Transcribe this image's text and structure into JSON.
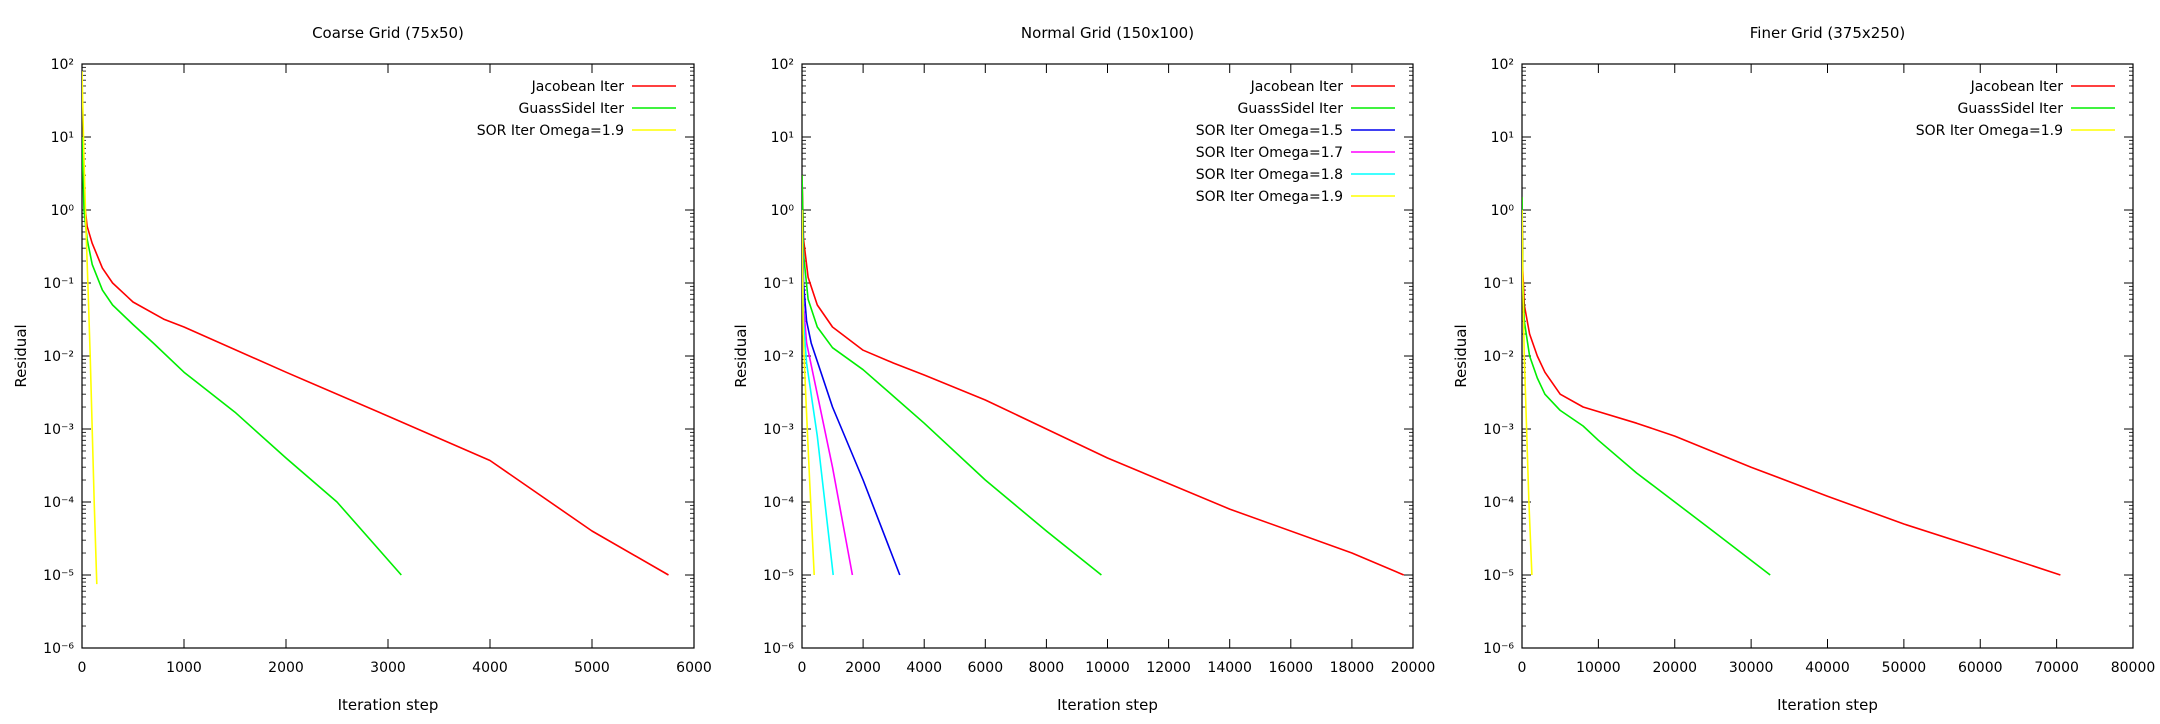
{
  "chart_data": [
    {
      "type": "line",
      "title": "Coarse Grid (75x50)",
      "xlabel": "Iteration step",
      "ylabel": "Residual",
      "xlim": [
        0,
        6000
      ],
      "ylim_exp": [
        -6,
        2
      ],
      "yscale": "log",
      "legend_position": "top-right",
      "xticks": [
        "0",
        "1000",
        "2000",
        "3000",
        "4000",
        "5000",
        "6000"
      ],
      "series": [
        {
          "name": "Jacobean Iter",
          "color": "#ff0000",
          "points": [
            [
              0,
              10
            ],
            [
              20,
              1.5
            ],
            [
              50,
              0.6
            ],
            [
              100,
              0.35
            ],
            [
              200,
              0.16
            ],
            [
              300,
              0.1
            ],
            [
              500,
              0.055
            ],
            [
              800,
              0.032
            ],
            [
              1000,
              0.025
            ],
            [
              2000,
              0.006
            ],
            [
              3000,
              0.0015
            ],
            [
              4000,
              0.00037
            ],
            [
              5000,
              4e-05
            ],
            [
              5750,
              1e-05
            ]
          ]
        },
        {
          "name": "GuassSidel Iter",
          "color": "#00ee00",
          "points": [
            [
              0,
              10
            ],
            [
              20,
              1.0
            ],
            [
              50,
              0.4
            ],
            [
              100,
              0.18
            ],
            [
              200,
              0.08
            ],
            [
              300,
              0.05
            ],
            [
              500,
              0.027
            ],
            [
              700,
              0.015
            ],
            [
              1000,
              0.006
            ],
            [
              1500,
              0.0017
            ],
            [
              2000,
              0.0004
            ],
            [
              2500,
              0.0001
            ],
            [
              3130,
              1e-05
            ]
          ]
        },
        {
          "name": "SOR Iter Omega=1.9",
          "color": "#ffff00",
          "points": [
            [
              0,
              80
            ],
            [
              20,
              5
            ],
            [
              40,
              0.5
            ],
            [
              60,
              0.08
            ],
            [
              80,
              0.01
            ],
            [
              100,
              0.001
            ],
            [
              120,
              0.0001
            ],
            [
              145,
              7.5e-06
            ]
          ]
        }
      ]
    },
    {
      "type": "line",
      "title": "Normal Grid (150x100)",
      "xlabel": "Iteration step",
      "ylabel": "Residual",
      "xlim": [
        0,
        20000
      ],
      "ylim_exp": [
        -6,
        2
      ],
      "yscale": "log",
      "legend_position": "top-right",
      "xticks": [
        "0",
        "2000",
        "4000",
        "6000",
        "8000",
        "10000",
        "12000",
        "14000",
        "16000",
        "18000",
        "20000"
      ],
      "series": [
        {
          "name": "Jacobean Iter",
          "color": "#ff0000",
          "points": [
            [
              0,
              3
            ],
            [
              50,
              0.4
            ],
            [
              200,
              0.12
            ],
            [
              500,
              0.05
            ],
            [
              1000,
              0.025
            ],
            [
              2000,
              0.012
            ],
            [
              3000,
              0.008
            ],
            [
              4000,
              0.0055
            ],
            [
              6000,
              0.0025
            ],
            [
              8000,
              0.001
            ],
            [
              10000,
              0.0004
            ],
            [
              14000,
              8e-05
            ],
            [
              18000,
              2e-05
            ],
            [
              19700,
              1e-05
            ]
          ]
        },
        {
          "name": "GuassSidel Iter",
          "color": "#00ee00",
          "points": [
            [
              0,
              3
            ],
            [
              50,
              0.25
            ],
            [
              200,
              0.06
            ],
            [
              500,
              0.025
            ],
            [
              1000,
              0.013
            ],
            [
              2000,
              0.0065
            ],
            [
              3000,
              0.0028
            ],
            [
              4000,
              0.0012
            ],
            [
              6000,
              0.0002
            ],
            [
              8000,
              4e-05
            ],
            [
              9800,
              1e-05
            ]
          ]
        },
        {
          "name": "SOR Iter Omega=1.5",
          "color": "#0000ee",
          "points": [
            [
              0,
              1
            ],
            [
              50,
              0.1
            ],
            [
              150,
              0.03
            ],
            [
              300,
              0.015
            ],
            [
              1000,
              0.002
            ],
            [
              2000,
              0.0002
            ],
            [
              3200,
              1e-05
            ]
          ]
        },
        {
          "name": "SOR Iter Omega=1.7",
          "color": "#ff00ff",
          "points": [
            [
              0,
              1
            ],
            [
              50,
              0.05
            ],
            [
              150,
              0.015
            ],
            [
              500,
              0.003
            ],
            [
              1000,
              0.0003
            ],
            [
              1650,
              1e-05
            ]
          ]
        },
        {
          "name": "SOR Iter Omega=1.8",
          "color": "#00ffff",
          "points": [
            [
              0,
              1
            ],
            [
              50,
              0.03
            ],
            [
              150,
              0.008
            ],
            [
              500,
              0.0008
            ],
            [
              1020,
              1e-05
            ]
          ]
        },
        {
          "name": "SOR Iter Omega=1.9",
          "color": "#ffff00",
          "points": [
            [
              0,
              1
            ],
            [
              40,
              0.02
            ],
            [
              120,
              0.003
            ],
            [
              250,
              0.0002
            ],
            [
              400,
              1e-05
            ]
          ]
        }
      ]
    },
    {
      "type": "line",
      "title": "Finer Grid (375x250)",
      "xlabel": "Iteration step",
      "ylabel": "Residual",
      "xlim": [
        0,
        80000
      ],
      "ylim_exp": [
        -6,
        2
      ],
      "yscale": "log",
      "legend_position": "top-right",
      "xticks": [
        "0",
        "10000",
        "20000",
        "30000",
        "40000",
        "50000",
        "60000",
        "70000",
        "80000"
      ],
      "series": [
        {
          "name": "Jacobean Iter",
          "color": "#ff0000",
          "points": [
            [
              0,
              1.5
            ],
            [
              100,
              0.15
            ],
            [
              300,
              0.05
            ],
            [
              1000,
              0.02
            ],
            [
              2000,
              0.01
            ],
            [
              3000,
              0.006
            ],
            [
              5000,
              0.003
            ],
            [
              8000,
              0.002
            ],
            [
              15000,
              0.0012
            ],
            [
              20000,
              0.0008
            ],
            [
              30000,
              0.0003
            ],
            [
              40000,
              0.00012
            ],
            [
              50000,
              5e-05
            ],
            [
              60000,
              2.3e-05
            ],
            [
              70500,
              1e-05
            ]
          ]
        },
        {
          "name": "GuassSidel Iter",
          "color": "#00ee00",
          "points": [
            [
              0,
              1.5
            ],
            [
              100,
              0.1
            ],
            [
              300,
              0.03
            ],
            [
              1000,
              0.01
            ],
            [
              2000,
              0.005
            ],
            [
              3000,
              0.003
            ],
            [
              5000,
              0.0018
            ],
            [
              8000,
              0.0011
            ],
            [
              10000,
              0.0007
            ],
            [
              15000,
              0.00025
            ],
            [
              20000,
              0.0001
            ],
            [
              25000,
              4e-05
            ],
            [
              32500,
              1e-05
            ]
          ]
        },
        {
          "name": "SOR Iter Omega=1.9",
          "color": "#ffff00",
          "points": [
            [
              0,
              1
            ],
            [
              100,
              0.1
            ],
            [
              300,
              0.01
            ],
            [
              600,
              0.001
            ],
            [
              900,
              0.0001
            ],
            [
              1300,
              1e-05
            ]
          ]
        }
      ]
    }
  ]
}
